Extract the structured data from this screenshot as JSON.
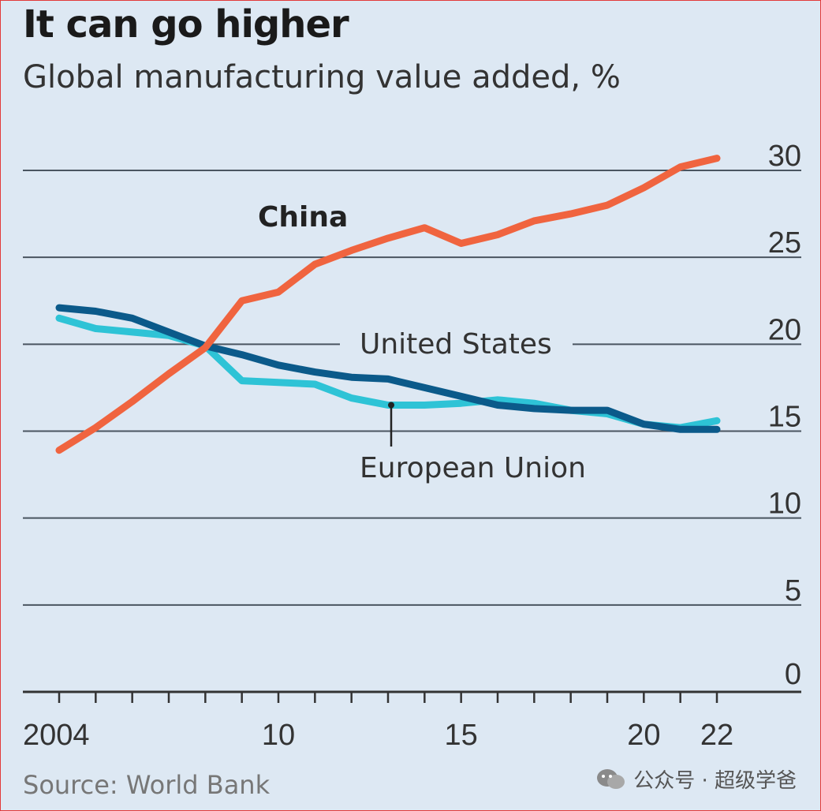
{
  "header": {
    "title": "It can go higher",
    "subtitle": "Global manufacturing value added, %"
  },
  "footer": {
    "source": "Source: World Bank",
    "watermark": "公众号 · 超级学爸"
  },
  "colors": {
    "background": "#dde8f3",
    "china": "#f0643f",
    "united_states": "#0b5a8a",
    "european_union": "#2ec3d6",
    "gridline": "#4a5560",
    "frame": "#e23a3a"
  },
  "chart_data": {
    "type": "line",
    "title": "It can go higher",
    "subtitle": "Global manufacturing value added, %",
    "xlabel": "",
    "ylabel": "",
    "xlim": [
      2004,
      2022
    ],
    "ylim": [
      0,
      30
    ],
    "x_tick_labels": [
      "2004",
      "10",
      "15",
      "20",
      "22"
    ],
    "x_tick_values": [
      2004,
      2010,
      2015,
      2020,
      2022
    ],
    "y_ticks": [
      0,
      5,
      10,
      15,
      20,
      25,
      30
    ],
    "y_axis_side": "right",
    "grid": true,
    "x": [
      2004,
      2005,
      2006,
      2007,
      2008,
      2009,
      2010,
      2011,
      2012,
      2013,
      2014,
      2015,
      2016,
      2017,
      2018,
      2019,
      2020,
      2021,
      2022
    ],
    "series": [
      {
        "name": "China",
        "color": "#f0643f",
        "values": [
          13.9,
          15.2,
          16.7,
          18.3,
          19.8,
          22.5,
          23.0,
          24.6,
          25.4,
          26.1,
          26.7,
          25.8,
          26.3,
          27.1,
          27.5,
          28.0,
          29.0,
          30.2,
          30.7
        ]
      },
      {
        "name": "United States",
        "color": "#0b5a8a",
        "values": [
          22.1,
          21.9,
          21.5,
          20.7,
          19.9,
          19.4,
          18.8,
          18.4,
          18.1,
          18.0,
          17.5,
          17.0,
          16.5,
          16.3,
          16.2,
          16.2,
          15.4,
          15.1,
          15.1
        ]
      },
      {
        "name": "European Union",
        "color": "#2ec3d6",
        "values": [
          21.5,
          20.9,
          20.7,
          20.5,
          19.9,
          17.9,
          17.8,
          17.7,
          16.9,
          16.5,
          16.5,
          16.6,
          16.8,
          16.6,
          16.2,
          16.0,
          15.4,
          15.2,
          15.6
        ]
      }
    ],
    "labels": {
      "china": "China",
      "united_states": "United States",
      "european_union": "European Union"
    }
  }
}
